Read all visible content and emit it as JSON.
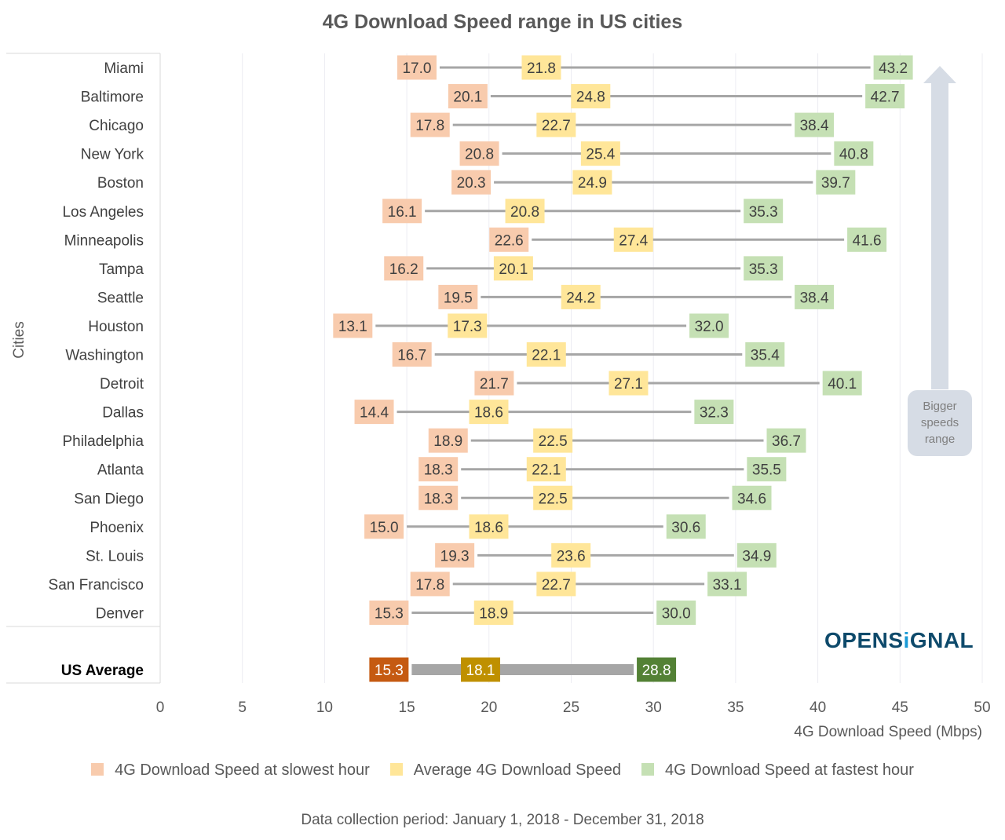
{
  "chart_data": {
    "type": "dumbbell",
    "title": "4G Download Speed range in US cities",
    "xlabel": "4G Download Speed (Mbps)",
    "ylabel": "Cities",
    "xlim": [
      0,
      50
    ],
    "xticks": [
      0,
      5,
      10,
      15,
      20,
      25,
      30,
      35,
      40,
      45,
      50
    ],
    "grid": true,
    "legend_position": "bottom",
    "series": [
      {
        "name": "4G Download Speed at slowest hour",
        "color": "#f8cbad"
      },
      {
        "name": "Average 4G Download Speed",
        "color": "#ffe699"
      },
      {
        "name": "4G Download Speed at fastest hour",
        "color": "#c5e0b4"
      }
    ],
    "categories": [
      "Miami",
      "Baltimore",
      "Chicago",
      "New York",
      "Boston",
      "Los Angeles",
      "Minneapolis",
      "Tampa",
      "Seattle",
      "Houston",
      "Washington",
      "Detroit",
      "Dallas",
      "Philadelphia",
      "Atlanta",
      "San Diego",
      "Phoenix",
      "St. Louis",
      "San Francisco",
      "Denver"
    ],
    "slowest": [
      17.0,
      20.1,
      17.8,
      20.8,
      20.3,
      16.1,
      22.6,
      16.2,
      19.5,
      13.1,
      16.7,
      21.7,
      14.4,
      18.9,
      18.3,
      18.3,
      15.0,
      19.3,
      17.8,
      15.3
    ],
    "average": [
      21.8,
      24.8,
      22.7,
      25.4,
      24.9,
      20.8,
      27.4,
      20.1,
      24.2,
      17.3,
      22.1,
      27.1,
      18.6,
      22.5,
      22.1,
      22.5,
      18.6,
      23.6,
      22.7,
      18.9
    ],
    "fastest": [
      43.2,
      42.7,
      38.4,
      40.8,
      39.7,
      35.3,
      41.6,
      35.3,
      38.4,
      32.0,
      35.4,
      40.1,
      32.3,
      36.7,
      35.5,
      34.6,
      30.6,
      34.9,
      33.1,
      30.0
    ],
    "us_average": {
      "label": "US Average",
      "slowest": 15.3,
      "average": 18.1,
      "fastest": 28.8,
      "colors": [
        "#c55a11",
        "#bf9000",
        "#538135"
      ]
    },
    "annotation": "Bigger speeds range"
  },
  "annotation_lines": [
    "Bigger",
    "speeds",
    "range"
  ],
  "logo": {
    "text_a": "OPENS",
    "text_i": "i",
    "text_b": "GNAL"
  },
  "footnote": "Data collection period: January 1, 2018 - December 31, 2018"
}
